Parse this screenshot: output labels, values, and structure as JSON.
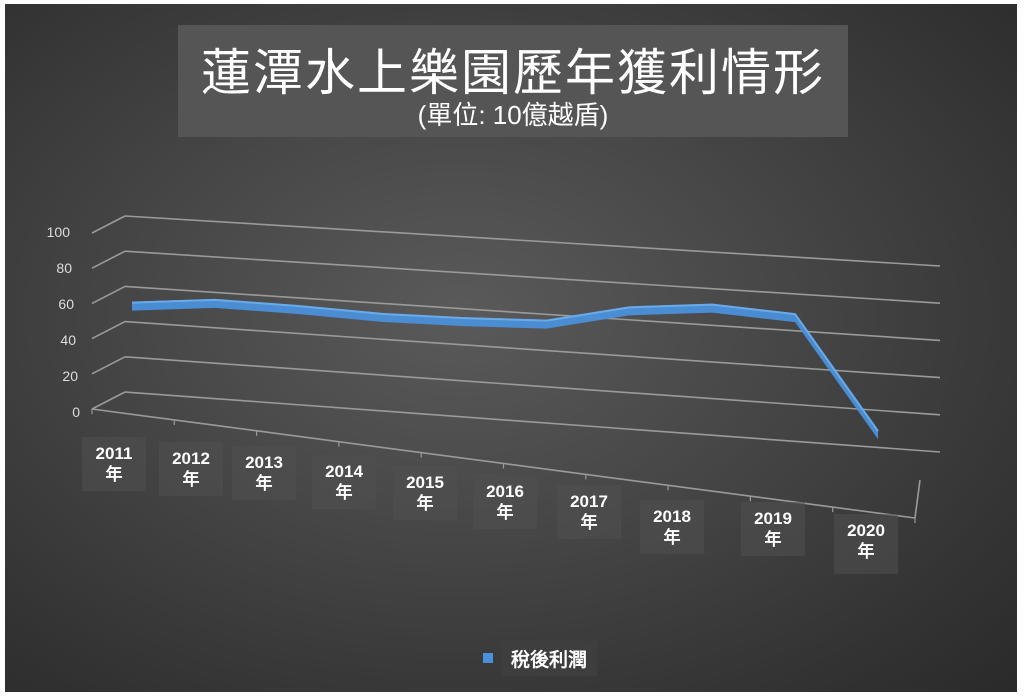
{
  "chart_data": {
    "type": "line",
    "style": "3d-line",
    "title": "蓮潭水上樂園歷年獲利情形",
    "subtitle": "(單位: 10億越盾)",
    "xlabel": "",
    "ylabel": "",
    "categories": [
      "2011年",
      "2012年",
      "2013年",
      "2014年",
      "2015年",
      "2016年",
      "2017年",
      "2018年",
      "2019年",
      "2020年"
    ],
    "series": [
      {
        "name": "稅後利潤",
        "color": "#4a90d9",
        "values": [
          57,
          62,
          62,
          61,
          62,
          64,
          75,
          80,
          78,
          15
        ]
      }
    ],
    "ylim": [
      0,
      100
    ],
    "yticks": [
      0,
      20,
      40,
      60,
      80,
      100
    ],
    "grid": true,
    "legend_position": "bottom"
  },
  "title": "蓮潭水上樂園歷年獲利情形",
  "subtitle": "(單位: 10億越盾)",
  "yaxis": {
    "ticks": [
      "100",
      "80",
      "60",
      "40",
      "20",
      "0"
    ]
  },
  "xaxis": {
    "labels": [
      {
        "year": "2011",
        "unit": "年"
      },
      {
        "year": "2012",
        "unit": "年"
      },
      {
        "year": "2013",
        "unit": "年"
      },
      {
        "year": "2014",
        "unit": "年"
      },
      {
        "year": "2015",
        "unit": "年"
      },
      {
        "year": "2016",
        "unit": "年"
      },
      {
        "year": "2017",
        "unit": "年"
      },
      {
        "year": "2018",
        "unit": "年"
      },
      {
        "year": "2019",
        "unit": "年"
      },
      {
        "year": "2020",
        "unit": "年"
      }
    ]
  },
  "legend": {
    "label": "稅後利潤",
    "color": "#4a90d9"
  },
  "colors": {
    "background": "#444444",
    "title_box": "#555555",
    "grid": "#9a9a9a",
    "series": "#4a90d9"
  }
}
